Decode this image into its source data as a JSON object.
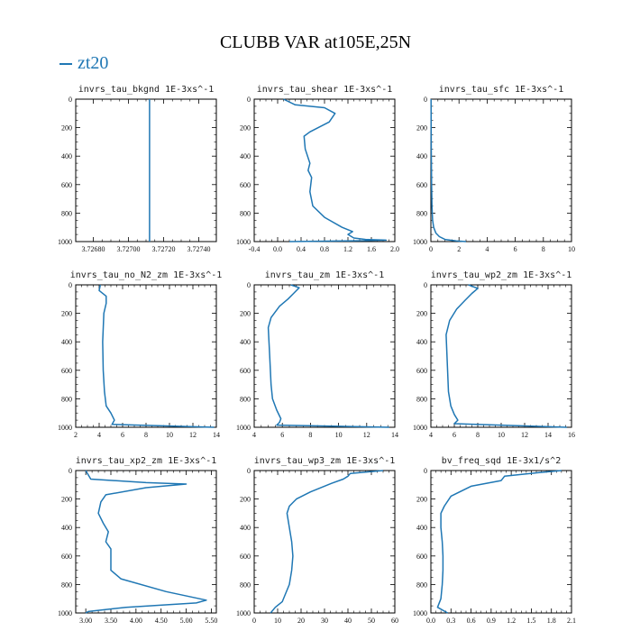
{
  "figure": {
    "title": "CLUBB VAR at105E,25N",
    "legend": "zt20",
    "line_color": "#1f77b4"
  },
  "chart_data": [
    {
      "type": "line",
      "title": "invrs_tau_bkgnd   1E-3xs^-1",
      "xlim": [
        3.7267,
        3.7275
      ],
      "ylim": [
        1000,
        0
      ],
      "xticks": [
        3.7268,
        3.727,
        3.7272,
        3.7274
      ],
      "xtick_labels": [
        "3.72680",
        "3.72700",
        "3.72720",
        "3.72740"
      ],
      "yticks": [
        0,
        200,
        400,
        600,
        800,
        1000
      ],
      "x": [
        3.72712,
        3.72712
      ],
      "y": [
        0,
        1000
      ]
    },
    {
      "type": "line",
      "title": "invrs_tau_shear   1E-3xs^-1",
      "xlim": [
        -0.4,
        2.0
      ],
      "ylim": [
        1000,
        0
      ],
      "xticks": [
        -0.4,
        0,
        0.4,
        0.8,
        1.2,
        1.6,
        2.0
      ],
      "xtick_labels": [
        "-0.4",
        "0.0",
        "0.4",
        "0.8",
        "1.2",
        "1.6",
        "2.0"
      ],
      "yticks": [
        0,
        200,
        400,
        600,
        800,
        1000
      ],
      "x": [
        0.1,
        0.3,
        0.8,
        0.98,
        0.88,
        0.55,
        0.45,
        0.47,
        0.55,
        0.52,
        0.58,
        0.55,
        0.6,
        0.8,
        1.1,
        1.28,
        1.2,
        1.3,
        1.5,
        1.85,
        1.2,
        0.2
      ],
      "y": [
        0,
        40,
        60,
        100,
        160,
        230,
        260,
        350,
        450,
        500,
        550,
        650,
        750,
        830,
        900,
        930,
        950,
        975,
        985,
        990,
        995,
        1000
      ]
    },
    {
      "type": "line",
      "title": "invrs_tau_sfc   1E-3xs^-1",
      "xlim": [
        0,
        10
      ],
      "ylim": [
        1000,
        0
      ],
      "xticks": [
        0,
        2,
        4,
        6,
        8,
        10
      ],
      "xtick_labels": [
        "0",
        "2",
        "4",
        "6",
        "8",
        "10"
      ],
      "yticks": [
        0,
        200,
        400,
        600,
        800,
        1000
      ],
      "x": [
        0.01,
        0.02,
        0.03,
        0.05,
        0.08,
        0.12,
        0.2,
        0.35,
        0.6,
        1.0,
        1.8,
        2.5
      ],
      "y": [
        0,
        200,
        400,
        600,
        750,
        850,
        900,
        940,
        965,
        985,
        995,
        1000
      ]
    },
    {
      "type": "line",
      "title": "invrs_tau_no_N2_zm   1E-3xs^-1",
      "xlim": [
        2,
        14
      ],
      "ylim": [
        1000,
        0
      ],
      "xticks": [
        2,
        4,
        6,
        8,
        10,
        12,
        14
      ],
      "xtick_labels": [
        "2",
        "4",
        "6",
        "8",
        "10",
        "12",
        "14"
      ],
      "yticks": [
        0,
        200,
        400,
        600,
        800,
        1000
      ],
      "x": [
        4.1,
        4.0,
        4.6,
        4.6,
        4.4,
        4.3,
        4.35,
        4.45,
        4.6,
        5.0,
        5.3,
        5.1,
        13.8
      ],
      "y": [
        0,
        40,
        80,
        130,
        200,
        400,
        600,
        750,
        850,
        900,
        950,
        980,
        1000
      ]
    },
    {
      "type": "line",
      "title": "invrs_tau_zm   1E-3xs^-1",
      "xlim": [
        4,
        14
      ],
      "ylim": [
        1000,
        0
      ],
      "xticks": [
        4,
        6,
        8,
        10,
        12,
        14
      ],
      "xtick_labels": [
        "4",
        "6",
        "8",
        "10",
        "12",
        "14"
      ],
      "yticks": [
        0,
        200,
        400,
        600,
        800,
        1000
      ],
      "x": [
        6.6,
        7.2,
        6.8,
        6.4,
        5.8,
        5.2,
        5.0,
        5.1,
        5.2,
        5.3,
        5.6,
        5.9,
        5.8,
        5.6,
        13.6
      ],
      "y": [
        0,
        20,
        60,
        100,
        150,
        230,
        300,
        500,
        700,
        800,
        880,
        940,
        965,
        985,
        1000
      ]
    },
    {
      "type": "line",
      "title": "invrs_tau_wp2_zm   1E-3xs^-1",
      "xlim": [
        4,
        16
      ],
      "ylim": [
        1000,
        0
      ],
      "xticks": [
        4,
        6,
        8,
        10,
        12,
        14,
        16
      ],
      "xtick_labels": [
        "4",
        "6",
        "8",
        "10",
        "12",
        "14",
        "16"
      ],
      "yticks": [
        0,
        200,
        400,
        600,
        800,
        1000
      ],
      "x": [
        7.2,
        8.0,
        7.5,
        6.9,
        6.2,
        5.6,
        5.3,
        5.4,
        5.5,
        5.7,
        6.0,
        6.3,
        6.0,
        15.6
      ],
      "y": [
        0,
        25,
        60,
        110,
        170,
        250,
        350,
        550,
        750,
        850,
        910,
        950,
        975,
        1000
      ]
    },
    {
      "type": "line",
      "title": "invrs_tau_xp2_zm   1E-3xs^-1",
      "xlim": [
        2.8,
        5.6
      ],
      "ylim": [
        1000,
        0
      ],
      "xticks": [
        3.0,
        3.5,
        4.0,
        4.5,
        5.0,
        5.5
      ],
      "xtick_labels": [
        "3.00",
        "3.50",
        "4.00",
        "4.50",
        "5.00",
        "5.50"
      ],
      "yticks": [
        0,
        200,
        400,
        600,
        800,
        1000
      ],
      "x": [
        3.0,
        3.1,
        4.2,
        5.0,
        4.2,
        3.4,
        3.3,
        3.25,
        3.35,
        3.45,
        3.4,
        3.5,
        3.5,
        3.7,
        4.6,
        5.4,
        5.2,
        3.8,
        3.05,
        3.0
      ],
      "y": [
        0,
        60,
        85,
        95,
        120,
        170,
        220,
        300,
        370,
        430,
        500,
        550,
        700,
        760,
        850,
        910,
        930,
        960,
        990,
        1000
      ]
    },
    {
      "type": "line",
      "title": "invrs_tau_wp3_zm   1E-3xs^-1",
      "xlim": [
        0,
        60
      ],
      "ylim": [
        1000,
        0
      ],
      "xticks": [
        0,
        10,
        20,
        30,
        40,
        50,
        60
      ],
      "xtick_labels": [
        "0",
        "10",
        "20",
        "30",
        "40",
        "50",
        "60"
      ],
      "yticks": [
        0,
        200,
        400,
        600,
        800,
        1000
      ],
      "x": [
        55,
        48,
        41,
        40,
        38,
        33,
        24,
        18,
        15,
        14,
        15,
        16,
        16.5,
        16,
        15,
        13,
        12,
        9,
        7
      ],
      "y": [
        0,
        10,
        20,
        40,
        60,
        90,
        150,
        200,
        250,
        300,
        400,
        500,
        600,
        700,
        800,
        880,
        920,
        960,
        1000
      ]
    },
    {
      "type": "line",
      "title": "bv_freq_sqd   1E-3x1/s^2",
      "xlim": [
        0,
        2.1
      ],
      "ylim": [
        1000,
        0
      ],
      "xticks": [
        0,
        0.3,
        0.6,
        0.9,
        1.2,
        1.5,
        1.8,
        2.1
      ],
      "xtick_labels": [
        "0.0",
        "0.3",
        "0.6",
        "0.9",
        "1.2",
        "1.5",
        "1.8",
        "2.1"
      ],
      "yticks": [
        0,
        200,
        400,
        600,
        800,
        1000
      ],
      "x": [
        1.95,
        1.6,
        1.1,
        1.05,
        0.6,
        0.3,
        0.2,
        0.15,
        0.15,
        0.17,
        0.18,
        0.18,
        0.17,
        0.15,
        0.1,
        0.25
      ],
      "y": [
        0,
        15,
        40,
        70,
        110,
        180,
        250,
        300,
        400,
        500,
        600,
        700,
        800,
        900,
        960,
        1000
      ]
    }
  ]
}
